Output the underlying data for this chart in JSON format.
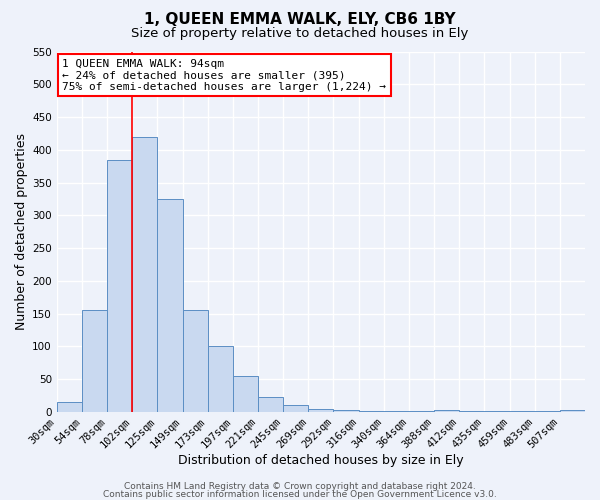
{
  "title": "1, QUEEN EMMA WALK, ELY, CB6 1BY",
  "subtitle": "Size of property relative to detached houses in Ely",
  "xlabel": "Distribution of detached houses by size in Ely",
  "ylabel": "Number of detached properties",
  "bin_labels": [
    "30sqm",
    "54sqm",
    "78sqm",
    "102sqm",
    "125sqm",
    "149sqm",
    "173sqm",
    "197sqm",
    "221sqm",
    "245sqm",
    "269sqm",
    "292sqm",
    "316sqm",
    "340sqm",
    "364sqm",
    "388sqm",
    "412sqm",
    "435sqm",
    "459sqm",
    "483sqm",
    "507sqm"
  ],
  "bar_heights": [
    15,
    155,
    385,
    420,
    325,
    155,
    100,
    55,
    22,
    10,
    5,
    3,
    2,
    2,
    1,
    3,
    1,
    2,
    1,
    1,
    3
  ],
  "bar_color": "#c9d9f0",
  "bar_edge_color": "#5b8ec4",
  "ylim": [
    0,
    550
  ],
  "yticks": [
    0,
    50,
    100,
    150,
    200,
    250,
    300,
    350,
    400,
    450,
    500,
    550
  ],
  "red_line_bin_index": 3,
  "annotation_text_line1": "1 QUEEN EMMA WALK: 94sqm",
  "annotation_text_line2": "← 24% of detached houses are smaller (395)",
  "annotation_text_line3": "75% of semi-detached houses are larger (1,224) →",
  "footer_line1": "Contains HM Land Registry data © Crown copyright and database right 2024.",
  "footer_line2": "Contains public sector information licensed under the Open Government Licence v3.0.",
  "background_color": "#eef2fa",
  "grid_color": "#ffffff",
  "title_fontsize": 11,
  "subtitle_fontsize": 9.5,
  "axis_label_fontsize": 9,
  "tick_fontsize": 7.5,
  "footer_fontsize": 6.5
}
